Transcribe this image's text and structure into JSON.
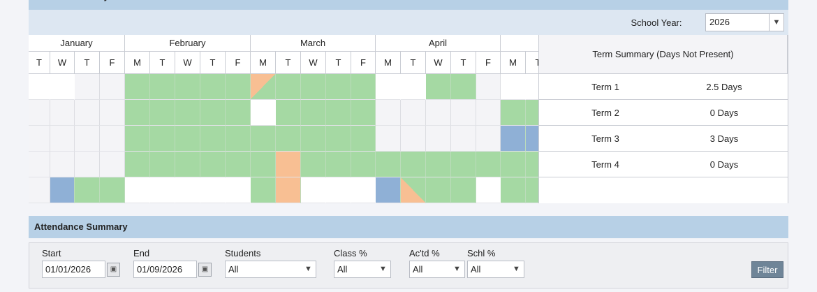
{
  "header": {
    "annual_title": "Annual Summary",
    "school_year_label": "School Year:",
    "school_year": "2026"
  },
  "calendar": {
    "months": [
      "January",
      "February",
      "March",
      "April"
    ],
    "days": [
      "T",
      "W",
      "T",
      "F",
      "M",
      "T",
      "W",
      "T",
      "F",
      "M",
      "T",
      "W",
      "T",
      "F",
      "M",
      "T",
      "W",
      "T",
      "F",
      "M",
      "T"
    ]
  },
  "term_summary": {
    "title": "Term Summary (Days Not Present)",
    "rows": [
      [
        "Term 1",
        "2.5 Days"
      ],
      [
        "Term 2",
        "0 Days"
      ],
      [
        "Term 3",
        "3 Days"
      ],
      [
        "Term 4",
        "0 Days"
      ]
    ]
  },
  "attendance": {
    "title": "Attendance Summary",
    "fields": [
      {
        "label": "Start",
        "value": "01/01/2026"
      },
      {
        "label": "End",
        "value": "01/09/2026"
      },
      {
        "label": "Students",
        "value": "All"
      },
      {
        "label": "Class %",
        "value": "All"
      },
      {
        "label": "Ac'td %",
        "value": "All"
      },
      {
        "label": "Schl %",
        "value": "All"
      }
    ],
    "button": "Filter"
  }
}
